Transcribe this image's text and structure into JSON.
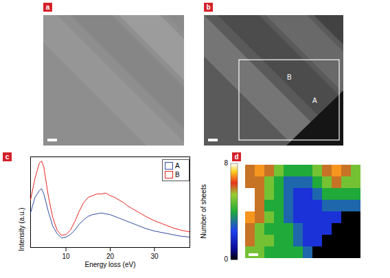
{
  "panels": [
    "a",
    "b",
    "c",
    "d"
  ],
  "image_b": {
    "labels": [
      "A",
      "B"
    ]
  },
  "chart_data": {
    "type": "line",
    "xlabel": "Energy loss (eV)",
    "ylabel": "Intensity (a.u.)",
    "x": [
      2,
      3,
      4,
      4.5,
      5,
      6,
      7,
      8,
      9,
      10,
      11,
      12,
      13,
      14,
      15,
      16,
      17,
      18,
      19,
      20,
      21,
      22,
      23,
      24,
      25,
      26,
      27,
      28,
      30,
      32,
      34,
      36,
      38
    ],
    "series": [
      {
        "name": "A",
        "color": "#2e4a9e",
        "values": [
          0.4,
          0.58,
          0.66,
          0.68,
          0.62,
          0.42,
          0.25,
          0.16,
          0.11,
          0.12,
          0.15,
          0.2,
          0.27,
          0.32,
          0.36,
          0.38,
          0.39,
          0.4,
          0.39,
          0.38,
          0.36,
          0.34,
          0.32,
          0.3,
          0.28,
          0.26,
          0.24,
          0.22,
          0.19,
          0.17,
          0.15,
          0.13,
          0.12
        ]
      },
      {
        "name": "B",
        "color": "#e8231f",
        "values": [
          0.55,
          0.8,
          0.98,
          1.0,
          0.93,
          0.6,
          0.35,
          0.2,
          0.14,
          0.15,
          0.2,
          0.3,
          0.42,
          0.52,
          0.58,
          0.6,
          0.62,
          0.62,
          0.63,
          0.6,
          0.58,
          0.55,
          0.52,
          0.48,
          0.45,
          0.42,
          0.39,
          0.36,
          0.31,
          0.27,
          0.23,
          0.2,
          0.18
        ]
      }
    ],
    "xlim": [
      2,
      38
    ],
    "xticks": [
      10,
      20,
      30
    ],
    "ylim": [
      0,
      1.05
    ],
    "legend": "upper right",
    "tick_labels": "x"
  },
  "map_d": {
    "colorbar_label": "Number of sheets",
    "colorbar_range": [
      0,
      8
    ],
    "colorbar_ticks": [
      0,
      8
    ],
    "cells": [
      [
        6,
        7,
        6,
        5,
        4,
        4,
        4,
        5,
        6,
        7,
        6,
        5
      ],
      [
        6,
        6,
        5,
        4,
        3,
        3,
        3,
        4,
        5,
        6,
        5,
        5
      ],
      [
        8,
        6,
        5,
        4,
        3,
        2,
        2,
        3,
        4,
        4,
        4,
        4
      ],
      [
        8,
        6,
        4,
        4,
        3,
        2,
        2,
        2,
        3,
        3,
        3,
        3
      ],
      [
        7,
        6,
        5,
        4,
        3,
        2,
        2,
        2,
        2,
        2,
        0,
        0
      ],
      [
        6,
        5,
        4,
        4,
        4,
        3,
        2,
        2,
        2,
        0,
        0,
        0
      ],
      [
        6,
        5,
        5,
        4,
        4,
        3,
        2,
        2,
        0,
        0,
        0,
        0
      ],
      [
        5,
        5,
        4,
        4,
        4,
        4,
        3,
        0,
        0,
        0,
        0,
        0
      ]
    ]
  }
}
